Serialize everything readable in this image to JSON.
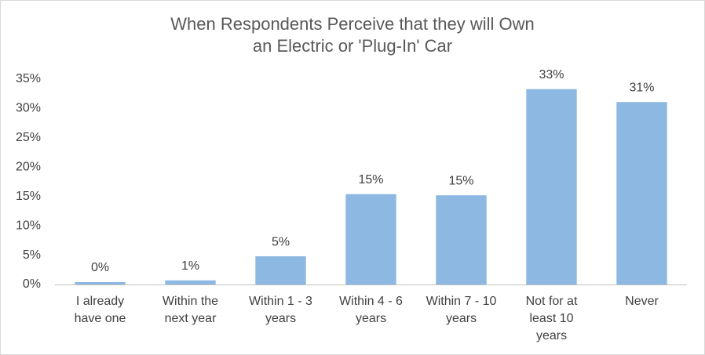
{
  "chart_data": {
    "type": "bar",
    "title": "When Respondents Perceive that they will Own\nan Electric or 'Plug-In' Car",
    "categories": [
      "I already\nhave one",
      "Within the\nnext year",
      "Within 1 - 3\nyears",
      "Within 4 - 6\nyears",
      "Within 7 - 10\nyears",
      "Not for at\nleast 10\nyears",
      "Never"
    ],
    "values": [
      0.4,
      0.7,
      4.8,
      15.4,
      15.2,
      33.3,
      31.1
    ],
    "value_labels": [
      "0%",
      "1%",
      "5%",
      "15%",
      "15%",
      "33%",
      "31%"
    ],
    "color": "#8db8e2",
    "ylim": [
      0,
      35
    ],
    "yticks": [
      {
        "value": 0,
        "label": "0%"
      },
      {
        "value": 5,
        "label": "5%"
      },
      {
        "value": 10,
        "label": "10%"
      },
      {
        "value": 15,
        "label": "15%"
      },
      {
        "value": 20,
        "label": "20%"
      },
      {
        "value": 25,
        "label": "25%"
      },
      {
        "value": 30,
        "label": "30%"
      },
      {
        "value": 35,
        "label": "35%"
      }
    ],
    "grid": false
  }
}
